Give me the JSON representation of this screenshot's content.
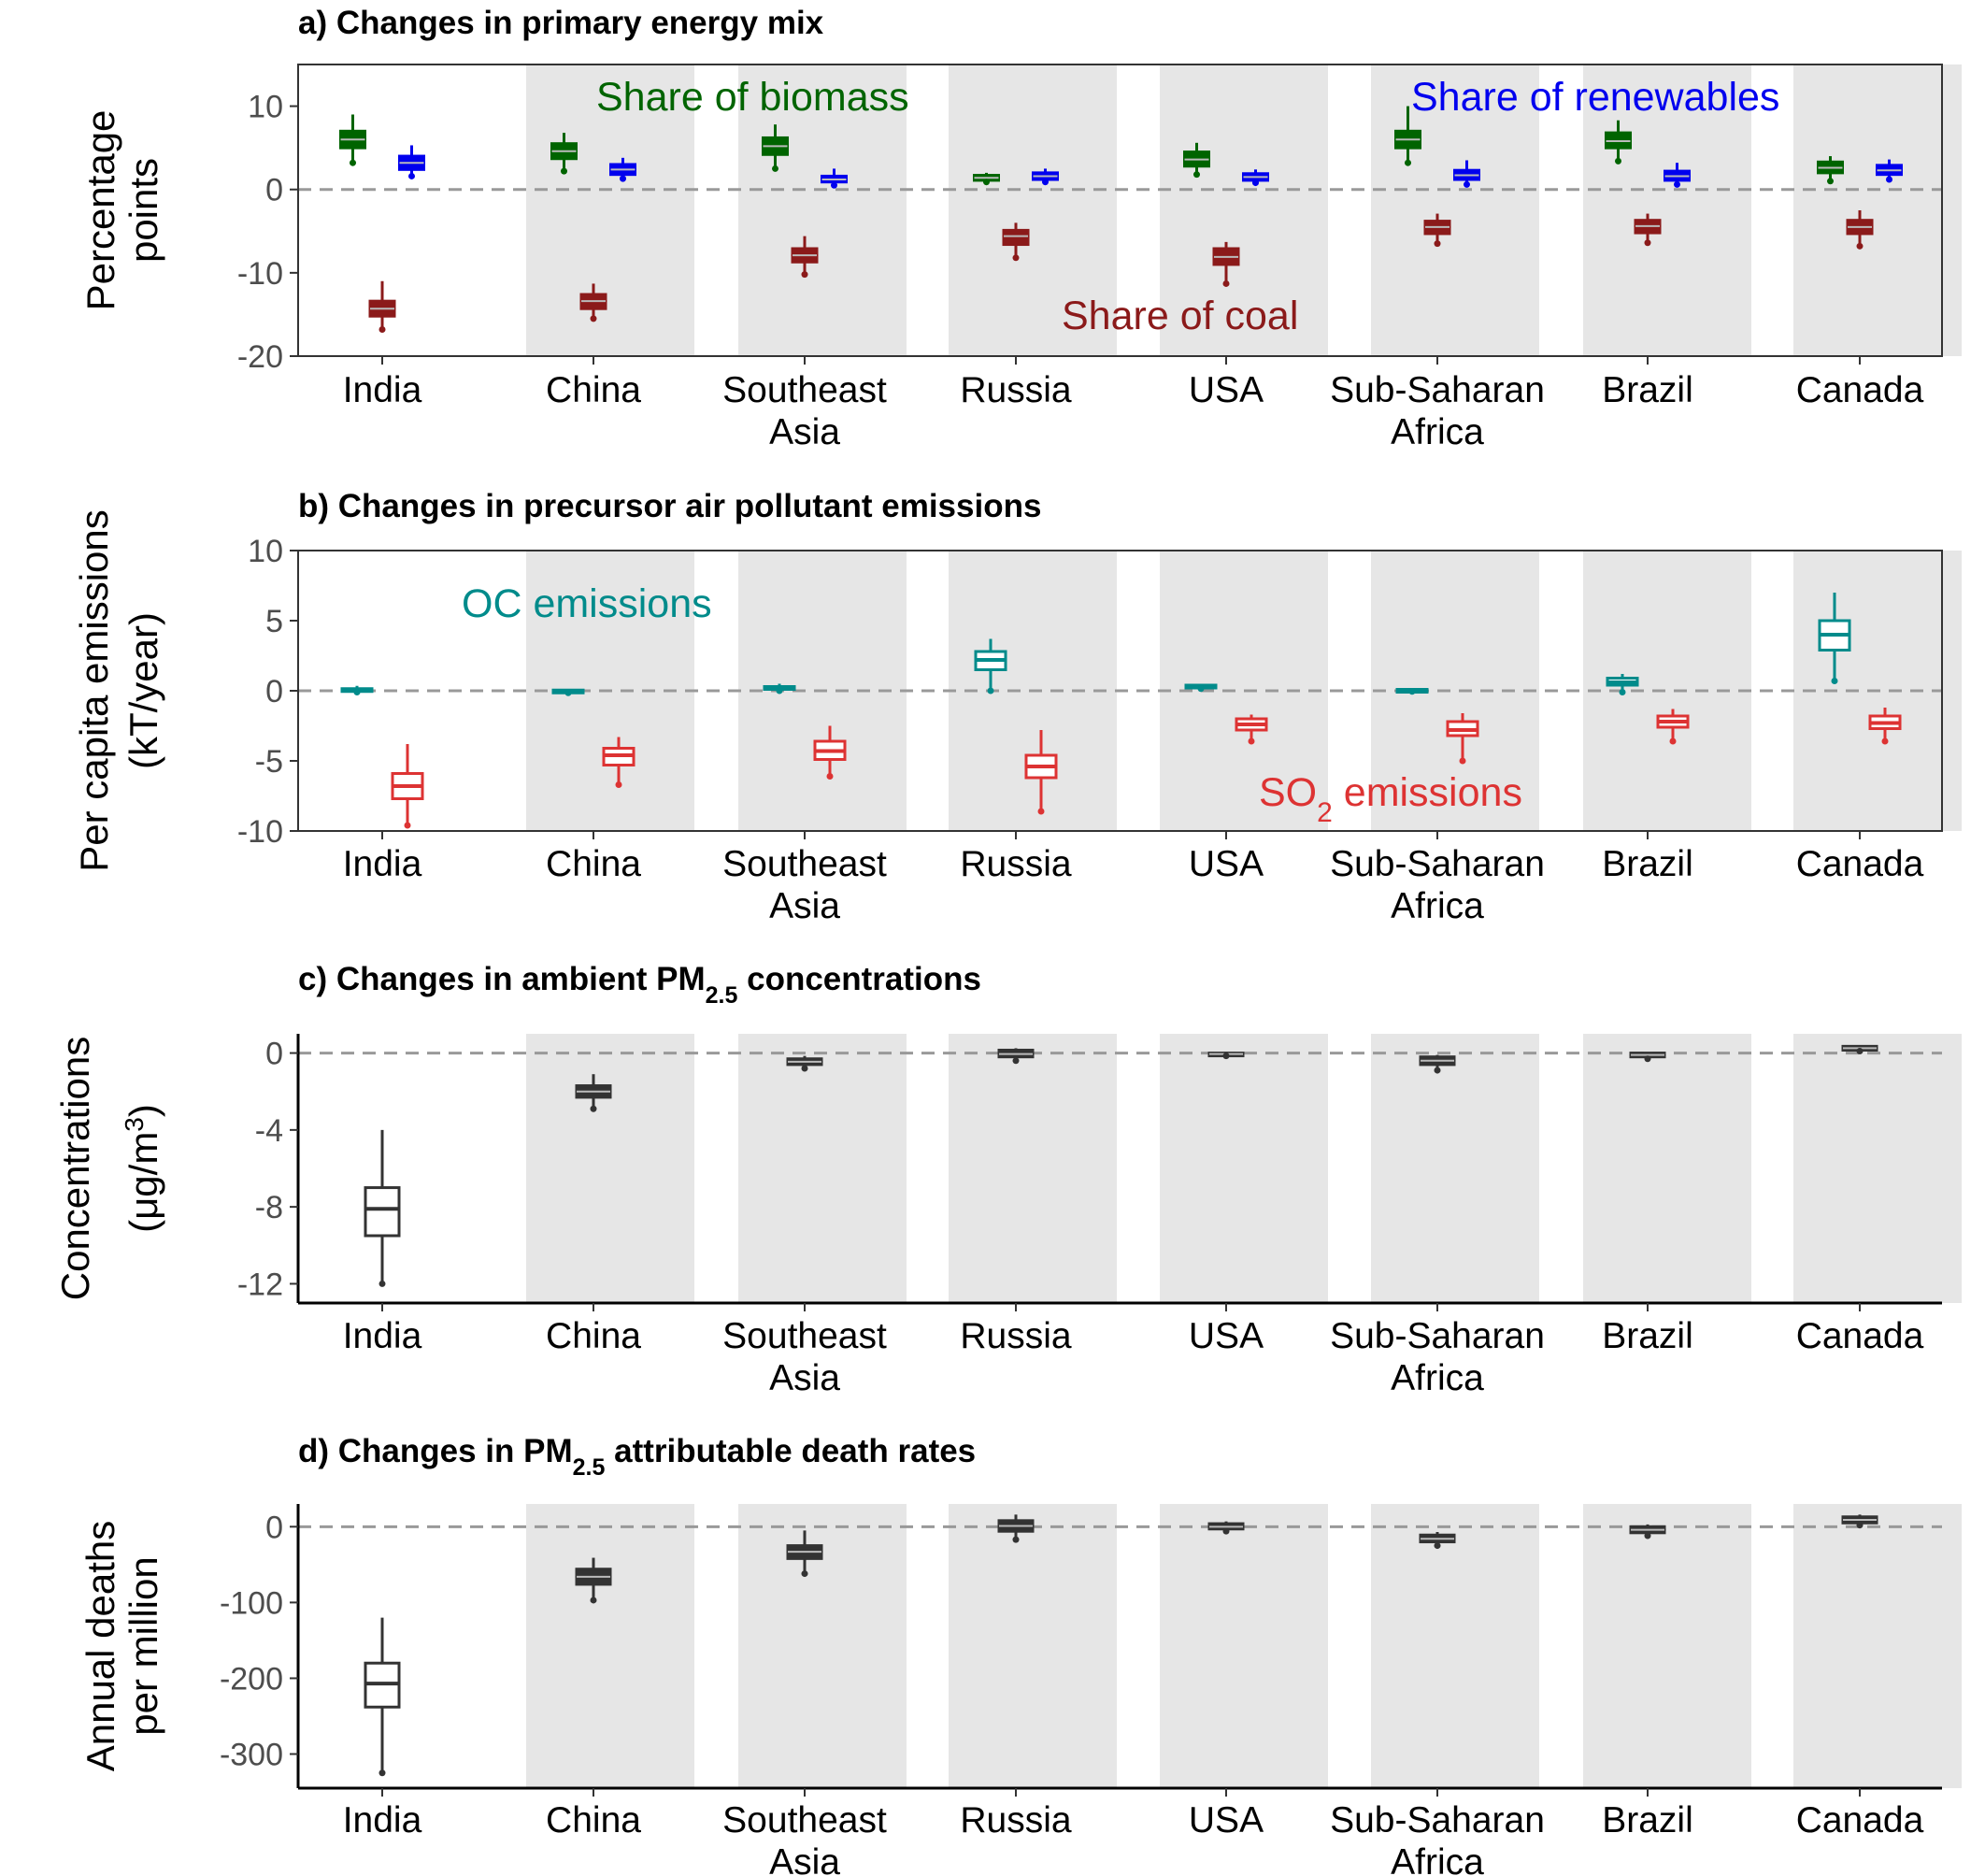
{
  "chart_data": [
    {
      "type": "box",
      "title": "a) Changes in primary energy mix",
      "ylabel_lines": [
        "Percentage",
        "points"
      ],
      "ylim": [
        -20,
        15
      ],
      "yticks": [
        10,
        0,
        -10,
        -20
      ],
      "categories": [
        [
          "India"
        ],
        [
          "China"
        ],
        [
          "Southeast",
          "Asia"
        ],
        [
          "Russia"
        ],
        [
          "USA"
        ],
        [
          "Sub-Saharan",
          "Africa"
        ],
        [
          "Brazil"
        ],
        [
          "Canada"
        ]
      ],
      "reference_line": 0,
      "annotations": [
        {
          "text": "Share of biomass",
          "color": "#006400"
        },
        {
          "text": "Share of renewables",
          "color": "#0000ee"
        },
        {
          "text": "Share of coal",
          "color": "#8b1a1a"
        }
      ],
      "series": [
        {
          "color": "#006400",
          "offset": -0.35,
          "boxes": [
            {
              "min": 3.2,
              "q1": 5.0,
              "median": 6.0,
              "q3": 7.0,
              "max": 9.0
            },
            {
              "min": 2.2,
              "q1": 3.7,
              "median": 4.6,
              "q3": 5.5,
              "max": 6.8
            },
            {
              "min": 2.5,
              "q1": 4.2,
              "median": 5.2,
              "q3": 6.2,
              "max": 7.8
            },
            {
              "min": 0.9,
              "q1": 1.1,
              "median": 1.4,
              "q3": 1.7,
              "max": 2.0
            },
            {
              "min": 1.8,
              "q1": 2.8,
              "median": 3.6,
              "q3": 4.5,
              "max": 5.6
            },
            {
              "min": 3.2,
              "q1": 5.0,
              "median": 6.0,
              "q3": 7.0,
              "max": 10.0
            },
            {
              "min": 3.4,
              "q1": 5.0,
              "median": 5.8,
              "q3": 6.8,
              "max": 8.3
            },
            {
              "min": 1.0,
              "q1": 2.0,
              "median": 2.6,
              "q3": 3.3,
              "max": 4.0
            }
          ]
        },
        {
          "color": "#0000ee",
          "offset": 0.35,
          "boxes": [
            {
              "min": 1.6,
              "q1": 2.4,
              "median": 3.2,
              "q3": 4.0,
              "max": 5.3
            },
            {
              "min": 1.3,
              "q1": 1.8,
              "median": 2.4,
              "q3": 3.0,
              "max": 3.8
            },
            {
              "min": 0.5,
              "q1": 0.9,
              "median": 1.2,
              "q3": 1.6,
              "max": 2.5
            },
            {
              "min": 0.9,
              "q1": 1.2,
              "median": 1.6,
              "q3": 2.0,
              "max": 2.5
            },
            {
              "min": 0.8,
              "q1": 1.1,
              "median": 1.5,
              "q3": 1.9,
              "max": 2.4
            },
            {
              "min": 0.6,
              "q1": 1.2,
              "median": 1.7,
              "q3": 2.3,
              "max": 3.5
            },
            {
              "min": 0.6,
              "q1": 1.1,
              "median": 1.6,
              "q3": 2.2,
              "max": 3.2
            },
            {
              "min": 1.2,
              "q1": 1.8,
              "median": 2.3,
              "q3": 2.9,
              "max": 3.6
            }
          ]
        },
        {
          "color": "#8b1a1a",
          "offset": 0,
          "boxes": [
            {
              "min": -16.8,
              "q1": -15.2,
              "median": -14.3,
              "q3": -13.4,
              "max": -11.0
            },
            {
              "min": -15.5,
              "q1": -14.3,
              "median": -13.4,
              "q3": -12.6,
              "max": -11.3
            },
            {
              "min": -10.2,
              "q1": -8.7,
              "median": -7.9,
              "q3": -7.1,
              "max": -5.6
            },
            {
              "min": -8.2,
              "q1": -6.6,
              "median": -5.6,
              "q3": -4.9,
              "max": -4.0
            },
            {
              "min": -11.3,
              "q1": -9.0,
              "median": -8.1,
              "q3": -7.1,
              "max": -6.3
            },
            {
              "min": -6.5,
              "q1": -5.3,
              "median": -4.5,
              "q3": -3.8,
              "max": -2.9
            },
            {
              "min": -6.4,
              "q1": -5.2,
              "median": -4.4,
              "q3": -3.7,
              "max": -2.9
            },
            {
              "min": -6.8,
              "q1": -5.3,
              "median": -4.5,
              "q3": -3.7,
              "max": -2.5
            }
          ]
        }
      ]
    },
    {
      "type": "box",
      "title": "b) Changes in precursor air pollutant emissions",
      "ylabel_lines": [
        "Per capita emissions",
        "(kT/year)"
      ],
      "ylim": [
        -10,
        10
      ],
      "yticks": [
        10,
        5,
        0,
        -5,
        -10
      ],
      "categories": [
        [
          "India"
        ],
        [
          "China"
        ],
        [
          "Southeast",
          "Asia"
        ],
        [
          "Russia"
        ],
        [
          "USA"
        ],
        [
          "Sub-Saharan",
          "Africa"
        ],
        [
          "Brazil"
        ],
        [
          "Canada"
        ]
      ],
      "reference_line": 0,
      "annotations": [
        {
          "text": "OC emissions",
          "color": "#008b8b"
        },
        {
          "text": "SO",
          "sub": "2",
          "after": " emissions",
          "color": "#dd3333"
        }
      ],
      "series": [
        {
          "color": "#008b8b",
          "offset": -0.3,
          "boxes": [
            {
              "min": -0.1,
              "q1": 0.0,
              "median": 0.1,
              "q3": 0.15,
              "max": 0.35
            },
            {
              "min": -0.15,
              "q1": -0.05,
              "median": 0.0,
              "q3": 0.05,
              "max": 0.1
            },
            {
              "min": 0.0,
              "q1": 0.1,
              "median": 0.2,
              "q3": 0.3,
              "max": 0.5
            },
            {
              "min": 0.0,
              "q1": 1.5,
              "median": 2.2,
              "q3": 2.8,
              "max": 3.7
            },
            {
              "min": 0.15,
              "q1": 0.25,
              "median": 0.3,
              "q3": 0.4,
              "max": 0.45
            },
            {
              "min": -0.05,
              "q1": 0.0,
              "median": 0.05,
              "q3": 0.1,
              "max": 0.15
            },
            {
              "min": -0.1,
              "q1": 0.4,
              "median": 0.6,
              "q3": 0.9,
              "max": 1.2
            },
            {
              "min": 0.7,
              "q1": 2.9,
              "median": 4.0,
              "q3": 5.0,
              "max": 7.0
            }
          ]
        },
        {
          "color": "#dd3333",
          "offset": 0.3,
          "boxes": [
            {
              "min": -9.6,
              "q1": -7.7,
              "median": -6.8,
              "q3": -5.9,
              "max": -3.8
            },
            {
              "min": -6.7,
              "q1": -5.3,
              "median": -4.6,
              "q3": -4.1,
              "max": -3.3
            },
            {
              "min": -6.1,
              "q1": -4.9,
              "median": -4.3,
              "q3": -3.6,
              "max": -2.5
            },
            {
              "min": -8.6,
              "q1": -6.2,
              "median": -5.4,
              "q3": -4.6,
              "max": -2.8
            },
            {
              "min": -3.6,
              "q1": -2.8,
              "median": -2.4,
              "q3": -2.0,
              "max": -1.7
            },
            {
              "min": -5.0,
              "q1": -3.2,
              "median": -2.8,
              "q3": -2.2,
              "max": -1.6
            },
            {
              "min": -3.6,
              "q1": -2.6,
              "median": -2.2,
              "q3": -1.8,
              "max": -1.3
            },
            {
              "min": -3.6,
              "q1": -2.7,
              "median": -2.3,
              "q3": -1.8,
              "max": -1.2
            }
          ]
        }
      ]
    },
    {
      "type": "box",
      "title": "c) Changes in ambient PM",
      "title_sub": "2.5",
      "title_after": " concentrations",
      "ylabel_lines": [
        "Concentrations",
        "(μg/m"
      ],
      "ylabel_sup": "3",
      "ylabel_after": ")",
      "ylim": [
        -13,
        1
      ],
      "yticks": [
        0,
        -4,
        -8,
        -12
      ],
      "categories": [
        [
          "India"
        ],
        [
          "China"
        ],
        [
          "Southeast",
          "Asia"
        ],
        [
          "Russia"
        ],
        [
          "USA"
        ],
        [
          "Sub-Saharan",
          "Africa"
        ],
        [
          "Brazil"
        ],
        [
          "Canada"
        ]
      ],
      "reference_line": 0,
      "series": [
        {
          "color": "#333333",
          "offset": 0,
          "boxes": [
            {
              "min": -12.0,
              "q1": -9.5,
              "median": -8.1,
              "q3": -7.0,
              "max": -4.0
            },
            {
              "min": -2.9,
              "q1": -2.3,
              "median": -2.0,
              "q3": -1.7,
              "max": -1.1
            },
            {
              "min": -0.8,
              "q1": -0.6,
              "median": -0.45,
              "q3": -0.3,
              "max": -0.15
            },
            {
              "min": -0.4,
              "q1": -0.2,
              "median": -0.05,
              "q3": 0.15,
              "max": 0.25
            },
            {
              "min": -0.15,
              "q1": -0.1,
              "median": -0.05,
              "q3": 0.0,
              "max": 0.05
            },
            {
              "min": -0.9,
              "q1": -0.6,
              "median": -0.4,
              "q3": -0.2,
              "max": -0.1
            },
            {
              "min": -0.3,
              "q1": -0.2,
              "median": -0.1,
              "q3": 0.0,
              "max": 0.05
            },
            {
              "min": 0.1,
              "q1": 0.15,
              "median": 0.25,
              "q3": 0.35,
              "max": 0.4
            }
          ]
        }
      ]
    },
    {
      "type": "box",
      "title": "d) Changes in PM",
      "title_sub": "2.5",
      "title_after": " attributable death rates",
      "ylabel_lines": [
        "Annual deaths",
        "per million"
      ],
      "ylim": [
        -345,
        30
      ],
      "yticks": [
        0,
        -100,
        -200,
        -300
      ],
      "categories": [
        [
          "India"
        ],
        [
          "China"
        ],
        [
          "Southeast",
          "Asia"
        ],
        [
          "Russia"
        ],
        [
          "USA"
        ],
        [
          "Sub-Saharan",
          "Africa"
        ],
        [
          "Brazil"
        ],
        [
          "Canada"
        ]
      ],
      "reference_line": 0,
      "series": [
        {
          "color": "#333333",
          "offset": 0,
          "boxes": [
            {
              "min": -325,
              "q1": -238,
              "median": -207,
              "q3": -180,
              "max": -120
            },
            {
              "min": -97,
              "q1": -76,
              "median": -66,
              "q3": -56,
              "max": -41
            },
            {
              "min": -62,
              "q1": -42,
              "median": -33,
              "q3": -25,
              "max": -5
            },
            {
              "min": -17,
              "q1": -6,
              "median": 1,
              "q3": 8,
              "max": 16
            },
            {
              "min": -6,
              "q1": -3,
              "median": 0,
              "q3": 4,
              "max": 7
            },
            {
              "min": -25,
              "q1": -20,
              "median": -16,
              "q3": -11,
              "max": -7
            },
            {
              "min": -12,
              "q1": -8,
              "median": -4,
              "q3": 0,
              "max": 3
            },
            {
              "min": 2,
              "q1": 5,
              "median": 9,
              "q3": 13,
              "max": 16
            }
          ]
        }
      ]
    }
  ]
}
